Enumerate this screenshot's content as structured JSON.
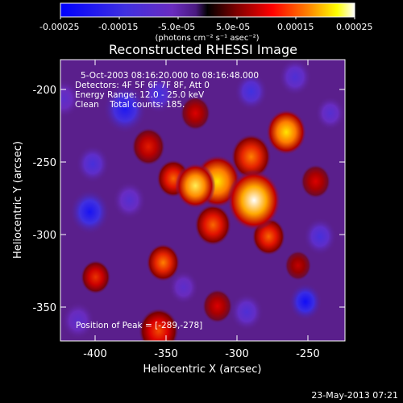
{
  "colorbar": {
    "tick_labels": [
      "-0.00025",
      "-0.00015",
      "-5.0e-05",
      "5.0e-05",
      "0.00015",
      "0.00025"
    ],
    "unit_label": "(photons cm⁻² s⁻¹ asec⁻²)",
    "colors": [
      "#0000ff",
      "#3a3aff",
      "#6a2cc0",
      "#5a2090",
      "#000000",
      "#800000",
      "#ff0000",
      "#ff8000",
      "#ffff00",
      "#ffffff"
    ]
  },
  "plot": {
    "title": "Reconstructed RHESSI Image",
    "xlabel": "Heliocentric X (arcsec)",
    "ylabel": "Heliocentric Y (arcsec)",
    "x_ticks": [
      "-400",
      "-350",
      "-300",
      "-250"
    ],
    "y_ticks": [
      "-200",
      "-250",
      "-300",
      "-350"
    ],
    "xlim": [
      -422,
      -228
    ],
    "ylim": [
      -372,
      -178
    ]
  },
  "annotation": {
    "line1": "5-Oct-2003 08:16:20.000 to 08:16:48.000",
    "line2": "Detectors: 4F 5F 6F 7F 8F, Att 0",
    "line3": "Energy Range: 12.0 - 25.0 keV",
    "line4": "Clean    Total counts: 185.",
    "peak": "Position of Peak = [-289,-278]"
  },
  "footer": {
    "timestamp": "23-May-2013 07:21"
  },
  "image_blobs": [
    {
      "x": -290,
      "y": -275,
      "v": 1.0,
      "r": 16
    },
    {
      "x": -315,
      "y": -262,
      "v": 0.85,
      "r": 14
    },
    {
      "x": -330,
      "y": -265,
      "v": 0.9,
      "r": 12
    },
    {
      "x": -268,
      "y": -228,
      "v": 0.85,
      "r": 12
    },
    {
      "x": -292,
      "y": -245,
      "v": 0.6,
      "r": 12
    },
    {
      "x": -318,
      "y": -292,
      "v": 0.55,
      "r": 11
    },
    {
      "x": -352,
      "y": -318,
      "v": 0.6,
      "r": 10
    },
    {
      "x": -345,
      "y": -260,
      "v": 0.55,
      "r": 10
    },
    {
      "x": -362,
      "y": -238,
      "v": 0.4,
      "r": 10
    },
    {
      "x": -355,
      "y": -365,
      "v": 0.5,
      "r": 12
    },
    {
      "x": -315,
      "y": -348,
      "v": 0.35,
      "r": 9
    },
    {
      "x": -398,
      "y": -328,
      "v": 0.45,
      "r": 9
    },
    {
      "x": -330,
      "y": -215,
      "v": 0.35,
      "r": 9
    },
    {
      "x": -260,
      "y": -320,
      "v": 0.3,
      "r": 8
    },
    {
      "x": -248,
      "y": -262,
      "v": 0.35,
      "r": 9
    },
    {
      "x": -280,
      "y": -300,
      "v": 0.55,
      "r": 10
    },
    {
      "x": -378,
      "y": -212,
      "v": -0.8,
      "r": 13
    },
    {
      "x": -402,
      "y": -283,
      "v": -0.85,
      "r": 12
    },
    {
      "x": -355,
      "y": -202,
      "v": -0.6,
      "r": 10
    },
    {
      "x": -255,
      "y": -345,
      "v": -0.9,
      "r": 10
    },
    {
      "x": -400,
      "y": -250,
      "v": -0.55,
      "r": 10
    },
    {
      "x": -292,
      "y": -200,
      "v": -0.6,
      "r": 10
    },
    {
      "x": -262,
      "y": -190,
      "v": -0.5,
      "r": 10
    },
    {
      "x": -245,
      "y": -300,
      "v": -0.55,
      "r": 10
    },
    {
      "x": -295,
      "y": -352,
      "v": -0.5,
      "r": 10
    },
    {
      "x": -375,
      "y": -275,
      "v": -0.45,
      "r": 10
    },
    {
      "x": -410,
      "y": -358,
      "v": -0.4,
      "r": 10
    },
    {
      "x": -338,
      "y": -335,
      "v": -0.4,
      "r": 9
    },
    {
      "x": -420,
      "y": -205,
      "v": -0.4,
      "r": 10
    },
    {
      "x": -238,
      "y": -215,
      "v": -0.45,
      "r": 9
    }
  ]
}
